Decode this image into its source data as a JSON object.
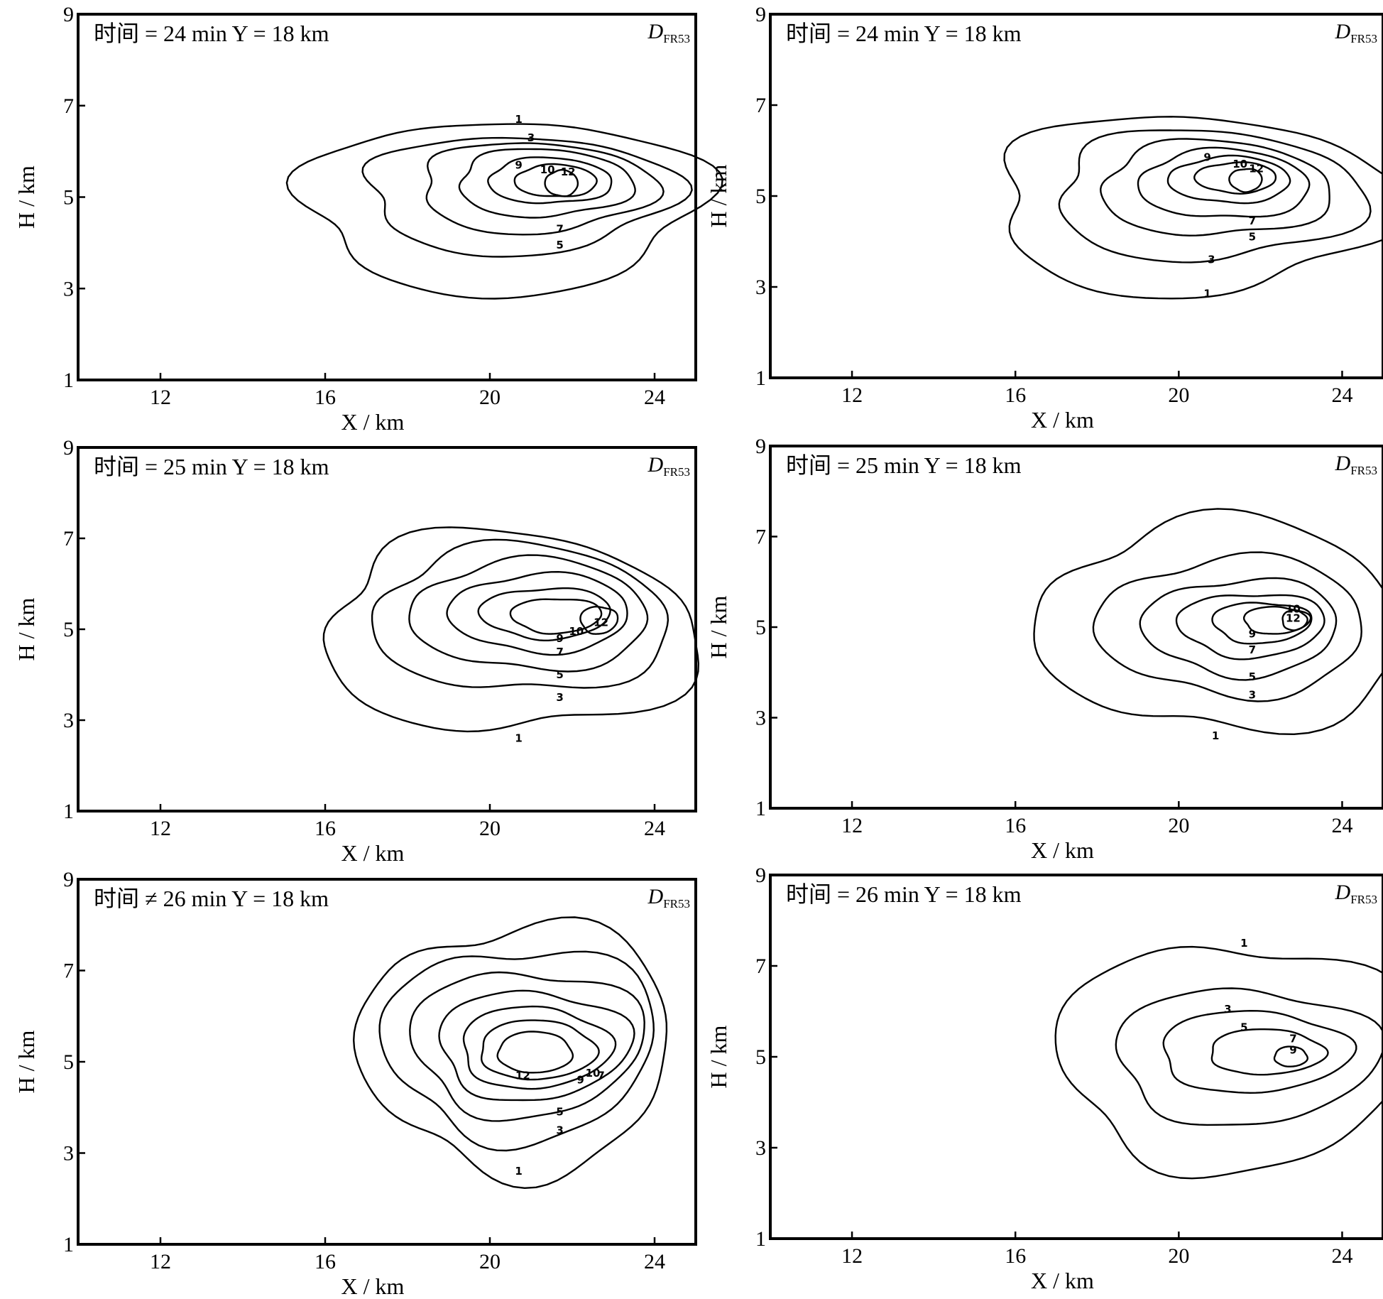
{
  "figure": {
    "panel_count": 6
  },
  "chart_data": [
    {
      "type": "contour",
      "panel": "row1-left",
      "title": "时间 = 24 min   Y = 18 km",
      "variable_label": "D",
      "variable_subscript": "FR53",
      "xlabel": "X / km",
      "ylabel": "H / km",
      "xlim": [
        10,
        25
      ],
      "ylim": [
        1,
        9
      ],
      "xticks": [
        "12",
        "16",
        "20",
        "24"
      ],
      "yticks": [
        "1",
        "3",
        "5",
        "7",
        "9"
      ],
      "contours": [
        {
          "level": 1,
          "center": [
            19.8,
            4.8
          ],
          "rx": 4.8,
          "ry": 1.9,
          "label_at": [
            20.7,
            6.7
          ]
        },
        {
          "level": 3,
          "center": [
            20.3,
            5.05
          ],
          "rx": 3.7,
          "ry": 1.3,
          "label_at": [
            21.0,
            6.3
          ]
        },
        {
          "level": 5,
          "center": [
            20.8,
            5.2
          ],
          "rx": 2.8,
          "ry": 1.0,
          "label_at": [
            21.7,
            3.95
          ]
        },
        {
          "level": 7,
          "center": [
            21.1,
            5.3
          ],
          "rx": 2.1,
          "ry": 0.75,
          "label_at": [
            21.7,
            4.3
          ]
        },
        {
          "level": 9,
          "center": [
            21.3,
            5.35
          ],
          "rx": 1.5,
          "ry": 0.5,
          "label_at": [
            20.7,
            5.7
          ]
        },
        {
          "level": 10,
          "center": [
            21.5,
            5.35
          ],
          "rx": 1.0,
          "ry": 0.35,
          "label_at": [
            21.4,
            5.6
          ]
        },
        {
          "level": 12,
          "center": [
            21.7,
            5.3
          ],
          "rx": 0.4,
          "ry": 0.28,
          "label_at": [
            21.9,
            5.55
          ]
        }
      ]
    },
    {
      "type": "contour",
      "panel": "row1-right",
      "title": "时间 = 24 min   Y = 18 km",
      "variable_label": "D",
      "variable_subscript": "FR53",
      "xlabel": "X / km",
      "ylabel": "H / km",
      "xlim": [
        10,
        25
      ],
      "ylim": [
        1,
        9
      ],
      "xticks": [
        "12",
        "16",
        "20",
        "24"
      ],
      "yticks": [
        "1",
        "3",
        "5",
        "7",
        "9"
      ],
      "contours": [
        {
          "level": 1,
          "center": [
            19.8,
            4.8
          ],
          "rx": 4.8,
          "ry": 2.0,
          "label_at": [
            20.7,
            2.85
          ]
        },
        {
          "level": 3,
          "center": [
            20.3,
            5.0
          ],
          "rx": 3.7,
          "ry": 1.45,
          "label_at": [
            20.8,
            3.6
          ]
        },
        {
          "level": 5,
          "center": [
            20.6,
            5.15
          ],
          "rx": 2.8,
          "ry": 1.05,
          "label_at": [
            21.8,
            4.1
          ]
        },
        {
          "level": 7,
          "center": [
            20.9,
            5.25
          ],
          "rx": 2.1,
          "ry": 0.75,
          "label_at": [
            21.8,
            4.45
          ]
        },
        {
          "level": 9,
          "center": [
            21.1,
            5.35
          ],
          "rx": 1.5,
          "ry": 0.5,
          "label_at": [
            20.7,
            5.85
          ]
        },
        {
          "level": 10,
          "center": [
            21.3,
            5.4
          ],
          "rx": 1.0,
          "ry": 0.33,
          "label_at": [
            21.5,
            5.7
          ]
        },
        {
          "level": 12,
          "center": [
            21.6,
            5.35
          ],
          "rx": 0.4,
          "ry": 0.25,
          "label_at": [
            21.9,
            5.6
          ]
        }
      ]
    },
    {
      "type": "contour",
      "panel": "row2-left",
      "title": "时间 = 25 min   Y = 18 km",
      "variable_label": "D",
      "variable_subscript": "FR53",
      "xlabel": "X / km",
      "ylabel": "H / km",
      "xlim": [
        10,
        25
      ],
      "ylim": [
        1,
        9
      ],
      "xticks": [
        "12",
        "16",
        "20",
        "24"
      ],
      "yticks": [
        "1",
        "3",
        "5",
        "7",
        "9"
      ],
      "contours": [
        {
          "level": 1,
          "center": [
            20.0,
            4.9
          ],
          "rx": 4.5,
          "ry": 2.2,
          "label_at": [
            20.7,
            2.6
          ]
        },
        {
          "level": 3,
          "center": [
            20.4,
            5.2
          ],
          "rx": 3.6,
          "ry": 1.6,
          "label_at": [
            21.7,
            3.5
          ]
        },
        {
          "level": 5,
          "center": [
            20.7,
            5.3
          ],
          "rx": 2.9,
          "ry": 1.2,
          "label_at": [
            21.7,
            4.0
          ]
        },
        {
          "level": 7,
          "center": [
            21.0,
            5.35
          ],
          "rx": 2.2,
          "ry": 0.85,
          "label_at": [
            21.7,
            4.5
          ]
        },
        {
          "level": 9,
          "center": [
            21.2,
            5.35
          ],
          "rx": 1.6,
          "ry": 0.55,
          "label_at": [
            21.7,
            4.8
          ]
        },
        {
          "level": 10,
          "center": [
            21.5,
            5.3
          ],
          "rx": 1.1,
          "ry": 0.38,
          "label_at": [
            22.1,
            4.95
          ]
        },
        {
          "level": 12,
          "center": [
            22.6,
            5.2
          ],
          "rx": 0.45,
          "ry": 0.3,
          "label_at": [
            22.7,
            5.15
          ]
        }
      ]
    },
    {
      "type": "contour",
      "panel": "row2-right",
      "title": "时间 = 25 min   Y = 18 km",
      "variable_label": "D",
      "variable_subscript": "FR53",
      "xlabel": "X / km",
      "ylabel": "H / km",
      "xlim": [
        10,
        25
      ],
      "ylim": [
        1,
        9
      ],
      "xticks": [
        "12",
        "16",
        "20",
        "24"
      ],
      "yticks": [
        "1",
        "3",
        "5",
        "7",
        "9"
      ],
      "contours": [
        {
          "level": 1,
          "center": [
            20.6,
            5.0
          ],
          "rx": 4.5,
          "ry": 2.3,
          "label_at": [
            20.9,
            2.6
          ]
        },
        {
          "level": 3,
          "center": [
            21.0,
            5.0
          ],
          "rx": 3.3,
          "ry": 1.5,
          "label_at": [
            21.8,
            3.5
          ]
        },
        {
          "level": 5,
          "center": [
            21.3,
            5.0
          ],
          "rx": 2.4,
          "ry": 1.05,
          "label_at": [
            21.8,
            3.9
          ]
        },
        {
          "level": 7,
          "center": [
            21.6,
            5.05
          ],
          "rx": 1.8,
          "ry": 0.7,
          "label_at": [
            21.8,
            4.5
          ]
        },
        {
          "level": 9,
          "center": [
            21.9,
            5.1
          ],
          "rx": 1.2,
          "ry": 0.45,
          "label_at": [
            21.8,
            4.85
          ]
        },
        {
          "level": 10,
          "center": [
            22.3,
            5.15
          ],
          "rx": 0.8,
          "ry": 0.3,
          "label_at": [
            22.8,
            5.4
          ]
        },
        {
          "level": 12,
          "center": [
            22.8,
            5.15
          ],
          "rx": 0.3,
          "ry": 0.22,
          "label_at": [
            22.8,
            5.2
          ]
        }
      ]
    },
    {
      "type": "contour",
      "panel": "row3-left",
      "title": "时间 ≠ 26 min   Y = 18 km",
      "variable_label": "D",
      "variable_subscript": "FR53",
      "xlabel": "X / km",
      "ylabel": "H / km",
      "xlim": [
        10,
        25
      ],
      "ylim": [
        1,
        9
      ],
      "xticks": [
        "12",
        "16",
        "20",
        "24"
      ],
      "yticks": [
        "1",
        "3",
        "5",
        "7",
        "9"
      ],
      "contours": [
        {
          "level": 1,
          "center": [
            20.3,
            5.3
          ],
          "rx": 3.8,
          "ry": 2.7,
          "label_at": [
            20.7,
            2.6
          ]
        },
        {
          "level": 3,
          "center": [
            20.4,
            5.4
          ],
          "rx": 3.3,
          "ry": 2.1,
          "label_at": [
            21.7,
            3.5
          ]
        },
        {
          "level": 5,
          "center": [
            20.6,
            5.4
          ],
          "rx": 2.8,
          "ry": 1.6,
          "label_at": [
            21.7,
            3.9
          ]
        },
        {
          "level": 7,
          "center": [
            20.8,
            5.35
          ],
          "rx": 2.3,
          "ry": 1.2,
          "label_at": [
            22.7,
            4.7
          ]
        },
        {
          "level": 9,
          "center": [
            20.9,
            5.3
          ],
          "rx": 1.8,
          "ry": 0.9,
          "label_at": [
            22.2,
            4.6
          ]
        },
        {
          "level": 10,
          "center": [
            21.0,
            5.25
          ],
          "rx": 1.4,
          "ry": 0.65,
          "label_at": [
            22.5,
            4.75
          ]
        },
        {
          "level": 12,
          "center": [
            21.0,
            5.2
          ],
          "rx": 0.9,
          "ry": 0.45,
          "label_at": [
            20.8,
            4.7
          ]
        }
      ]
    },
    {
      "type": "contour",
      "panel": "row3-right",
      "title": "时间 = 26 min   Y = 18 km",
      "variable_label": "D",
      "variable_subscript": "FR53",
      "xlabel": "X / km",
      "ylabel": "H / km",
      "xlim": [
        10,
        25
      ],
      "ylim": [
        1,
        9
      ],
      "xticks": [
        "12",
        "16",
        "20",
        "24"
      ],
      "yticks": [
        "1",
        "3",
        "5",
        "7",
        "9"
      ],
      "contours": [
        {
          "level": 1,
          "center": [
            20.9,
            5.0
          ],
          "rx": 4.3,
          "ry": 2.5,
          "label_at": [
            21.6,
            7.5
          ]
        },
        {
          "level": 3,
          "center": [
            21.3,
            5.0
          ],
          "rx": 3.2,
          "ry": 1.5,
          "label_at": [
            21.2,
            6.05
          ]
        },
        {
          "level": 5,
          "center": [
            21.6,
            5.1
          ],
          "rx": 2.3,
          "ry": 0.9,
          "label_at": [
            21.6,
            5.65
          ]
        },
        {
          "level": 7,
          "center": [
            22.0,
            5.1
          ],
          "rx": 1.4,
          "ry": 0.5,
          "label_at": [
            22.8,
            5.4
          ]
        },
        {
          "level": 9,
          "center": [
            22.7,
            5.0
          ],
          "rx": 0.4,
          "ry": 0.22,
          "label_at": [
            22.8,
            5.15
          ]
        }
      ]
    }
  ]
}
